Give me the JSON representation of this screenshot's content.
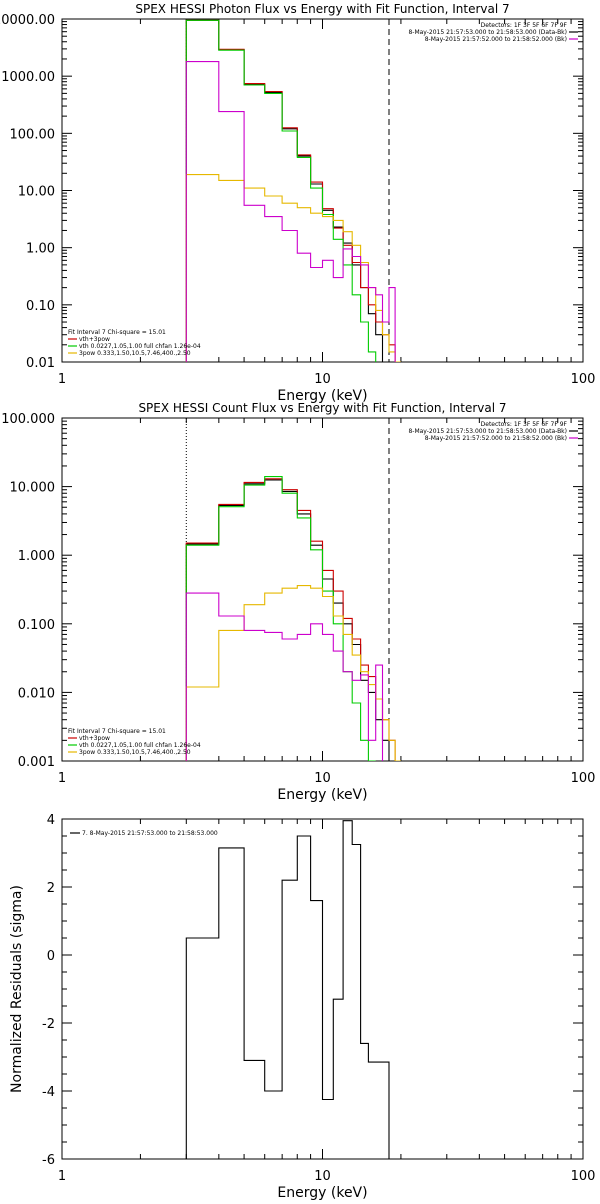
{
  "chart_data": [
    {
      "type": "line",
      "title": "SPEX HESSI Photon Flux vs Energy with Fit Function, Interval 7",
      "xlabel": "Energy (keV)",
      "ylabel": "",
      "xscale": "log",
      "yscale": "log",
      "xlim": [
        1,
        100
      ],
      "ylim": [
        0.01,
        10000
      ],
      "x_ticks": [
        "1",
        "10",
        "100"
      ],
      "y_ticks": [
        "0.01",
        "0.10",
        "1.00",
        "10.00",
        "100.00",
        "1000.00",
        "10000.00"
      ],
      "vlines": [
        {
          "x": 3,
          "style": "dotted"
        },
        {
          "x": 18,
          "style": "dashed"
        }
      ],
      "legend_right": {
        "lines": [
          "Detectors: 1F 3F 5F 6F 7F 9F",
          "8-May-2015 21:57:53.000 to 21:58:53.000 (Data-Bk)",
          "8-May-2015 21:57:52.000 to 21:58:52.000 (Bk)"
        ],
        "colors": [
          "#000000",
          "#000000",
          "#cc00cc"
        ]
      },
      "legend_left": {
        "lines": [
          "Fit Interval 7   Chi-square = 15.01",
          "vth+3pow",
          "vth 0.0227,1.05,1.00  full chfan 1.26e-04",
          "3pow 0.333,1.50,10.5,7.46,400.,2.50"
        ],
        "colors": [
          "#000000",
          "#cc0000",
          "#00cc00",
          "#e6b800"
        ]
      },
      "bin_edges": [
        3,
        4,
        5,
        6,
        7,
        8,
        9,
        10,
        11,
        12,
        13,
        14,
        15,
        16,
        17,
        18,
        19,
        20,
        22
      ],
      "series": [
        {
          "name": "Data-Bk",
          "color": "#000000",
          "values": [
            9500,
            2900,
            720,
            520,
            120,
            40,
            13,
            4.5,
            2.3,
            1.2,
            0.5,
            0.2,
            0.07,
            0.03,
            null,
            null,
            null,
            null
          ]
        },
        {
          "name": "vth+3pow",
          "color": "#cc0000",
          "values": [
            9500,
            2950,
            740,
            540,
            125,
            42,
            14,
            4.8,
            2.2,
            1.1,
            0.55,
            0.2,
            0.1,
            0.05,
            0.03,
            0.02,
            0.01,
            null
          ]
        },
        {
          "name": "vth",
          "color": "#00cc00",
          "values": [
            9500,
            2850,
            700,
            500,
            110,
            38,
            11,
            3.8,
            1.4,
            0.5,
            0.15,
            0.05,
            0.015,
            null,
            null,
            null,
            null,
            null
          ]
        },
        {
          "name": "3pow",
          "color": "#e6b800",
          "values": [
            19,
            15,
            11,
            8,
            6,
            5,
            4,
            3.5,
            3,
            1.9,
            1.1,
            0.55,
            0.2,
            0.08,
            0.03,
            0.015,
            0.01,
            null
          ]
        },
        {
          "name": "Bk",
          "color": "#cc00cc",
          "values": [
            1800,
            240,
            5.5,
            3.5,
            2,
            0.8,
            0.45,
            0.6,
            0.3,
            0.95,
            0.7,
            0.5,
            0.2,
            0.15,
            0.05,
            0.2,
            null,
            null
          ]
        }
      ]
    },
    {
      "type": "line",
      "title": "SPEX HESSI Count Flux vs Energy with Fit Function, Interval 7",
      "xlabel": "Energy (keV)",
      "ylabel": "",
      "xscale": "log",
      "yscale": "log",
      "xlim": [
        1,
        100
      ],
      "ylim": [
        0.001,
        100
      ],
      "x_ticks": [
        "1",
        "10",
        "100"
      ],
      "y_ticks": [
        "0.001",
        "0.010",
        "0.100",
        "1.000",
        "10.000",
        "100.000"
      ],
      "vlines": [
        {
          "x": 3,
          "style": "dotted"
        },
        {
          "x": 18,
          "style": "dashed"
        }
      ],
      "legend_right": {
        "lines": [
          "Detectors: 1F 3F 5F 6F 7F 9F",
          "8-May-2015 21:57:53.000 to 21:58:53.000 (Data-Bk)",
          "8-May-2015 21:57:52.000 to 21:58:52.000 (Bk)"
        ],
        "colors": [
          "#000000",
          "#000000",
          "#cc00cc"
        ]
      },
      "legend_left": {
        "lines": [
          "Fit Interval 7   Chi-square = 15.01",
          "vth+3pow",
          "vth 0.0227,1.05,1.00  full chfan 1.26e-04",
          "3pow 0.333,1.50,10.5,7.46,400.,2.50"
        ],
        "colors": [
          "#000000",
          "#cc0000",
          "#00cc00",
          "#e6b800"
        ]
      },
      "bin_edges": [
        3,
        4,
        5,
        6,
        7,
        8,
        9,
        10,
        11,
        12,
        13,
        14,
        15,
        16,
        17,
        18,
        19,
        20,
        22
      ],
      "series": [
        {
          "name": "Data-Bk",
          "color": "#000000",
          "values": [
            1.45,
            5.3,
            11,
            12.5,
            8.5,
            4,
            1.4,
            0.45,
            0.2,
            0.1,
            0.05,
            0.015,
            0.01,
            0.004,
            0.002,
            null,
            null,
            null
          ]
        },
        {
          "name": "vth+3pow",
          "color": "#cc0000",
          "values": [
            1.5,
            5.5,
            11.5,
            13,
            9,
            4.5,
            1.6,
            0.6,
            0.3,
            0.12,
            0.06,
            0.025,
            0.017,
            0.008,
            0.004,
            0.002,
            0.001,
            null
          ]
        },
        {
          "name": "vth",
          "color": "#00cc00",
          "values": [
            1.4,
            5.1,
            10.5,
            14,
            8,
            3.5,
            1.2,
            0.3,
            0.1,
            0.02,
            0.007,
            0.002,
            0.001,
            null,
            null,
            null,
            null,
            null
          ]
        },
        {
          "name": "3pow",
          "color": "#e6b800",
          "values": [
            0.012,
            0.08,
            0.19,
            0.28,
            0.33,
            0.36,
            0.33,
            0.25,
            0.13,
            0.07,
            0.035,
            0.02,
            0.013,
            0.008,
            0.004,
            0.002,
            0.001,
            null
          ]
        },
        {
          "name": "Bk",
          "color": "#cc00cc",
          "values": [
            0.28,
            0.13,
            0.08,
            0.075,
            0.06,
            0.07,
            0.1,
            0.07,
            0.04,
            0.02,
            0.015,
            0.018,
            0.002,
            0.025,
            null,
            null,
            null,
            null
          ]
        }
      ]
    },
    {
      "type": "line",
      "title": "",
      "xlabel": "Energy (keV)",
      "ylabel": "Normalized Residuals (sigma)",
      "xscale": "log",
      "yscale": "linear",
      "xlim": [
        1,
        100
      ],
      "ylim": [
        -6,
        4
      ],
      "x_ticks": [
        "1",
        "10",
        "100"
      ],
      "y_ticks": [
        "-6",
        "-4",
        "-2",
        "0",
        "2",
        "4"
      ],
      "legend": {
        "lines": [
          "7.  8-May-2015 21:57:53.000 to 21:58:53.000"
        ],
        "colors": [
          "#000000"
        ]
      },
      "bin_edges": [
        3,
        4,
        5,
        6,
        7,
        8,
        9,
        10,
        11,
        12,
        13,
        14,
        15,
        16,
        17,
        18
      ],
      "series": [
        {
          "name": "7.  8-May-2015 21:57:53.000 to 21:58:53.000",
          "color": "#000000",
          "values": [
            0.5,
            3.15,
            -3.1,
            -4.0,
            2.2,
            3.5,
            1.6,
            -4.25,
            -1.3,
            3.95,
            3.25,
            -2.6,
            -3.15,
            -3.15,
            -3.15
          ]
        }
      ]
    }
  ]
}
